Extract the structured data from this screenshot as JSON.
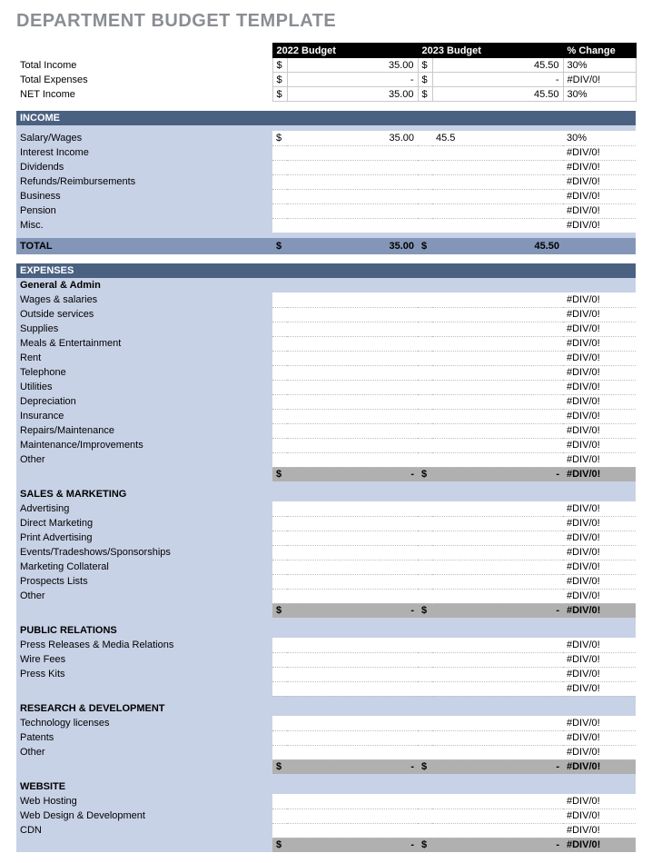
{
  "title": "DEPARTMENT BUDGET TEMPLATE",
  "colors": {
    "title": "#8a8d93",
    "header_bg": "#000000",
    "header_fg": "#ffffff",
    "section_bar": "#4b6182",
    "income_body": "#c8d2e6",
    "income_total": "#8496b8",
    "exp_body": "#c8d2e6",
    "subtotal": "#b0b0b0",
    "grid": "#c9c9c9",
    "dotted": "#bfbfbf"
  },
  "columns": {
    "budget1": "2022 Budget",
    "budget2": "2023 Budget",
    "change": "% Change"
  },
  "summary": [
    {
      "label": "Total Income",
      "cur1": "$",
      "val1": "35.00",
      "cur2": "$",
      "val2": "45.50",
      "chg": "30%"
    },
    {
      "label": "Total Expenses",
      "cur1": "$",
      "val1": "-",
      "cur2": "$",
      "val2": "-",
      "chg": "#DIV/0!"
    },
    {
      "label": "NET Income",
      "cur1": "$",
      "val1": "35.00",
      "cur2": "$",
      "val2": "45.50",
      "chg": "30%"
    }
  ],
  "income": {
    "title": "INCOME",
    "rows": [
      {
        "label": "Salary/Wages",
        "cur1": "$",
        "val1": "35.00",
        "cur2": "",
        "val2": "45.5",
        "chg": "30%"
      },
      {
        "label": "Interest Income",
        "cur1": "",
        "val1": "",
        "cur2": "",
        "val2": "",
        "chg": "#DIV/0!"
      },
      {
        "label": "Dividends",
        "cur1": "",
        "val1": "",
        "cur2": "",
        "val2": "",
        "chg": "#DIV/0!"
      },
      {
        "label": "Refunds/Reimbursements",
        "cur1": "",
        "val1": "",
        "cur2": "",
        "val2": "",
        "chg": "#DIV/0!"
      },
      {
        "label": "Business",
        "cur1": "",
        "val1": "",
        "cur2": "",
        "val2": "",
        "chg": "#DIV/0!"
      },
      {
        "label": "Pension",
        "cur1": "",
        "val1": "",
        "cur2": "",
        "val2": "",
        "chg": "#DIV/0!"
      },
      {
        "label": "Misc.",
        "cur1": "",
        "val1": "",
        "cur2": "",
        "val2": "",
        "chg": "#DIV/0!"
      }
    ],
    "total": {
      "label": "TOTAL",
      "cur1": "$",
      "val1": "35.00",
      "cur2": "$",
      "val2": "45.50",
      "chg": ""
    }
  },
  "expenses": {
    "title": "EXPENSES",
    "sections": [
      {
        "name": "General & Admin",
        "rows": [
          {
            "label": "Wages & salaries",
            "chg": "#DIV/0!"
          },
          {
            "label": "Outside services",
            "chg": "#DIV/0!"
          },
          {
            "label": "Supplies",
            "chg": "#DIV/0!"
          },
          {
            "label": "Meals & Entertainment",
            "chg": "#DIV/0!"
          },
          {
            "label": "Rent",
            "chg": "#DIV/0!"
          },
          {
            "label": "Telephone",
            "chg": "#DIV/0!"
          },
          {
            "label": "Utilities",
            "chg": "#DIV/0!"
          },
          {
            "label": "Depreciation",
            "chg": "#DIV/0!"
          },
          {
            "label": "Insurance",
            "chg": "#DIV/0!"
          },
          {
            "label": "Repairs/Maintenance",
            "chg": "#DIV/0!"
          },
          {
            "label": "Maintenance/Improvements",
            "chg": "#DIV/0!"
          },
          {
            "label": "Other",
            "chg": "#DIV/0!"
          }
        ],
        "subtotal": {
          "cur1": "$",
          "val1": "-",
          "cur2": "$",
          "val2": "-",
          "chg": "#DIV/0!"
        }
      },
      {
        "name": "SALES & MARKETING",
        "rows": [
          {
            "label": "Advertising",
            "chg": "#DIV/0!"
          },
          {
            "label": "Direct Marketing",
            "chg": "#DIV/0!"
          },
          {
            "label": "Print Advertising",
            "chg": "#DIV/0!"
          },
          {
            "label": "Events/Tradeshows/Sponsorships",
            "chg": "#DIV/0!"
          },
          {
            "label": "Marketing Collateral",
            "chg": "#DIV/0!"
          },
          {
            "label": "Prospects Lists",
            "chg": "#DIV/0!"
          },
          {
            "label": "Other",
            "chg": "#DIV/0!"
          }
        ],
        "subtotal": {
          "cur1": "$",
          "val1": "-",
          "cur2": "$",
          "val2": "-",
          "chg": "#DIV/0!"
        }
      },
      {
        "name": "PUBLIC RELATIONS",
        "rows": [
          {
            "label": "Press Releases & Media Relations",
            "chg": "#DIV/0!"
          },
          {
            "label": "Wire Fees",
            "chg": "#DIV/0!"
          },
          {
            "label": "Press Kits",
            "chg": "#DIV/0!"
          },
          {
            "label": "",
            "chg": "#DIV/0!"
          }
        ],
        "subtotal": null
      },
      {
        "name": "RESEARCH & DEVELOPMENT",
        "rows": [
          {
            "label": "Technology licenses",
            "chg": "#DIV/0!"
          },
          {
            "label": "Patents",
            "chg": "#DIV/0!"
          },
          {
            "label": "Other",
            "chg": "#DIV/0!"
          }
        ],
        "subtotal": {
          "cur1": "$",
          "val1": "-",
          "cur2": "$",
          "val2": "-",
          "chg": "#DIV/0!"
        }
      },
      {
        "name": "WEBSITE",
        "rows": [
          {
            "label": "Web Hosting",
            "chg": "#DIV/0!"
          },
          {
            "label": "Web Design & Development",
            "chg": "#DIV/0!"
          },
          {
            "label": "CDN",
            "chg": "#DIV/0!"
          }
        ],
        "subtotal": {
          "cur1": "$",
          "val1": "-",
          "cur2": "$",
          "val2": "-",
          "chg": "#DIV/0!"
        }
      }
    ]
  }
}
